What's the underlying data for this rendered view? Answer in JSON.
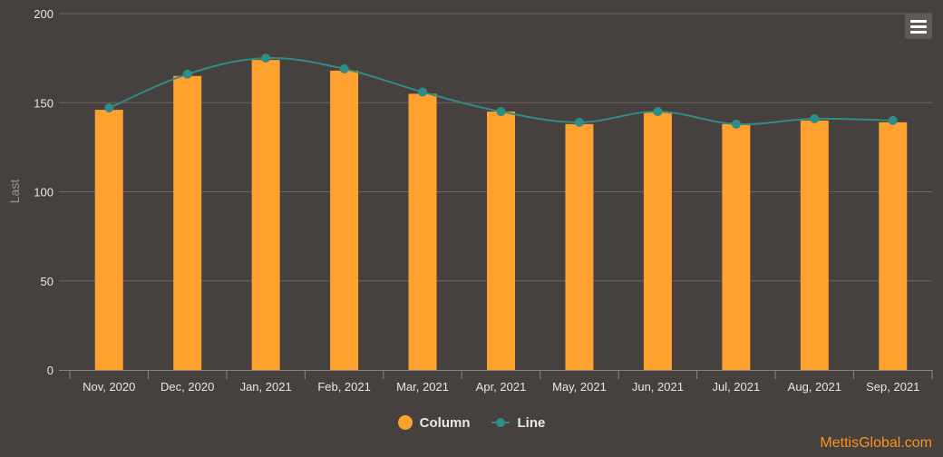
{
  "chart_data": {
    "type": "bar",
    "categories": [
      "Nov, 2020",
      "Dec, 2020",
      "Jan, 2021",
      "Feb, 2021",
      "Mar, 2021",
      "Apr, 2021",
      "May, 2021",
      "Jun, 2021",
      "Jul, 2021",
      "Aug, 2021",
      "Sep, 2021"
    ],
    "series": [
      {
        "name": "Column",
        "type": "column",
        "color": "#ffa12e",
        "values": [
          146,
          165,
          174,
          168,
          155,
          145,
          138,
          145,
          138,
          140,
          139
        ]
      },
      {
        "name": "Line",
        "type": "line",
        "color": "#2f8c87",
        "values": [
          147,
          166,
          175,
          169,
          156,
          145,
          139,
          145,
          138,
          141,
          140
        ]
      }
    ],
    "ylabel": "Last",
    "xlabel": "",
    "ylim": [
      0,
      200
    ],
    "yticks": [
      "0",
      "50",
      "100",
      "150",
      "200"
    ],
    "grid": true,
    "legend_position": "bottom-center"
  },
  "legend": {
    "column_label": "Column",
    "line_label": "Line"
  },
  "credit": "MettisGlobal.com",
  "colors": {
    "background": "#46413e",
    "gridline": "#6b6561",
    "axis": "#8c8682",
    "text": "#e8e8e8",
    "column": "#ffa12e",
    "line": "#2f8c87",
    "credit": "#f7941d"
  },
  "menu": {
    "icon": "hamburger-menu-icon"
  }
}
